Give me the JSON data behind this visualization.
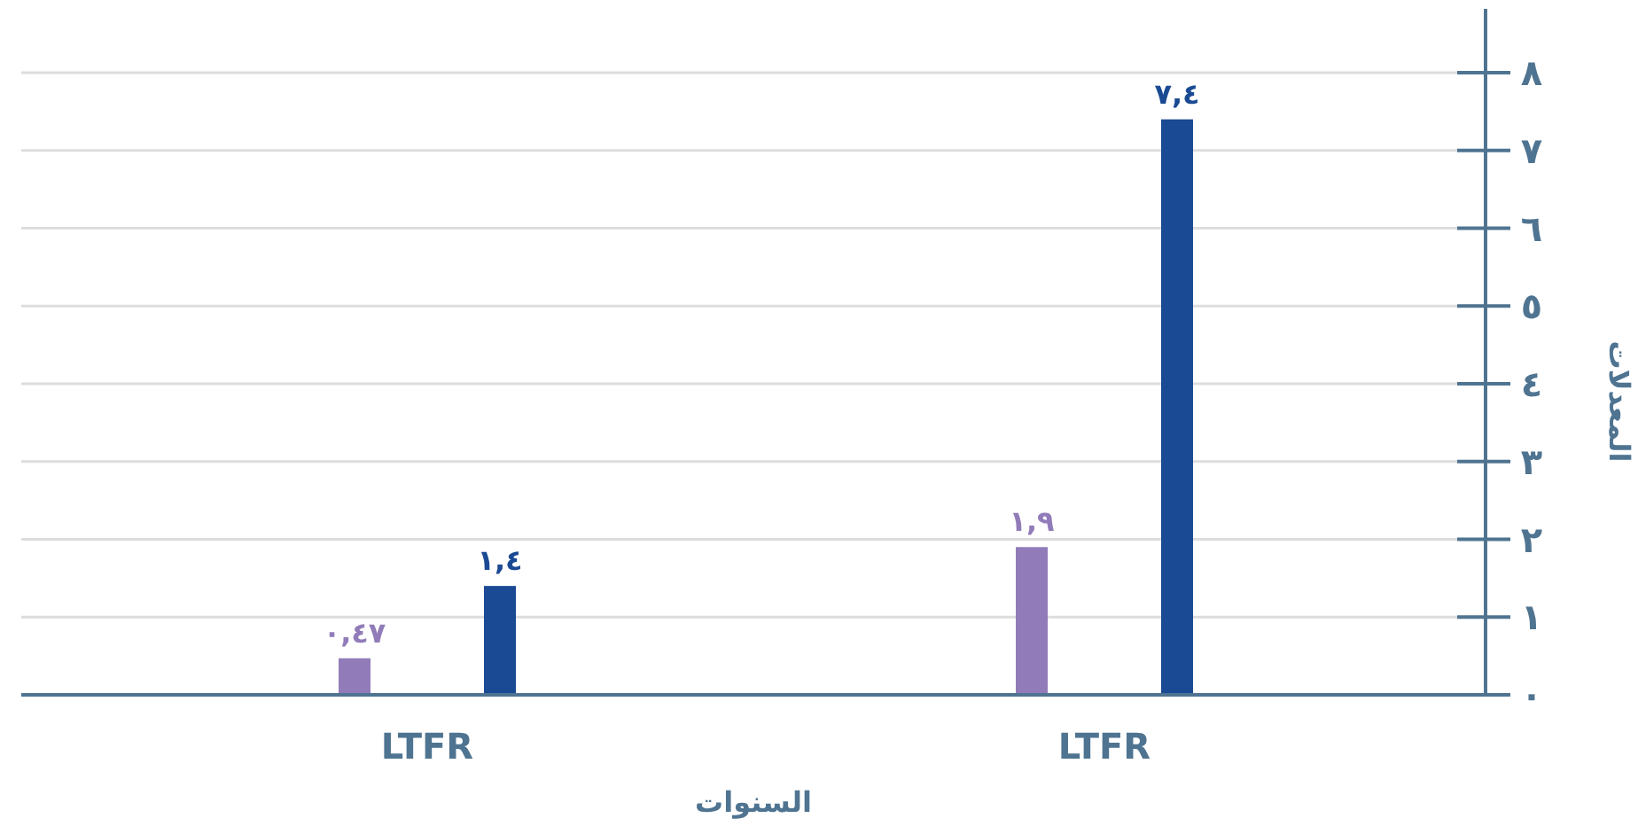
{
  "chart_data": {
    "type": "bar",
    "xlabel": "السنوات",
    "ylabel": "المعدلات",
    "categories": [
      "LTFR",
      "LTFR"
    ],
    "series": [
      {
        "color": "#917cb9",
        "values": [
          0.47,
          1.9
        ],
        "value_labels": [
          "٠,٤٧",
          "١,٩"
        ]
      },
      {
        "color": "#1a4a93",
        "values": [
          1.4,
          7.4
        ],
        "value_labels": [
          "١,٤",
          "٧,٤"
        ]
      }
    ],
    "ylim": [
      0,
      8
    ],
    "yticks": [
      {
        "value": 0,
        "label": "٠"
      },
      {
        "value": 1,
        "label": "١"
      },
      {
        "value": 2,
        "label": "٢"
      },
      {
        "value": 3,
        "label": "٣"
      },
      {
        "value": 4,
        "label": "٤"
      },
      {
        "value": 5,
        "label": "٥"
      },
      {
        "value": 6,
        "label": "٦"
      },
      {
        "value": 7,
        "label": "٧"
      },
      {
        "value": 8,
        "label": "٨"
      }
    ],
    "grid": "y"
  }
}
